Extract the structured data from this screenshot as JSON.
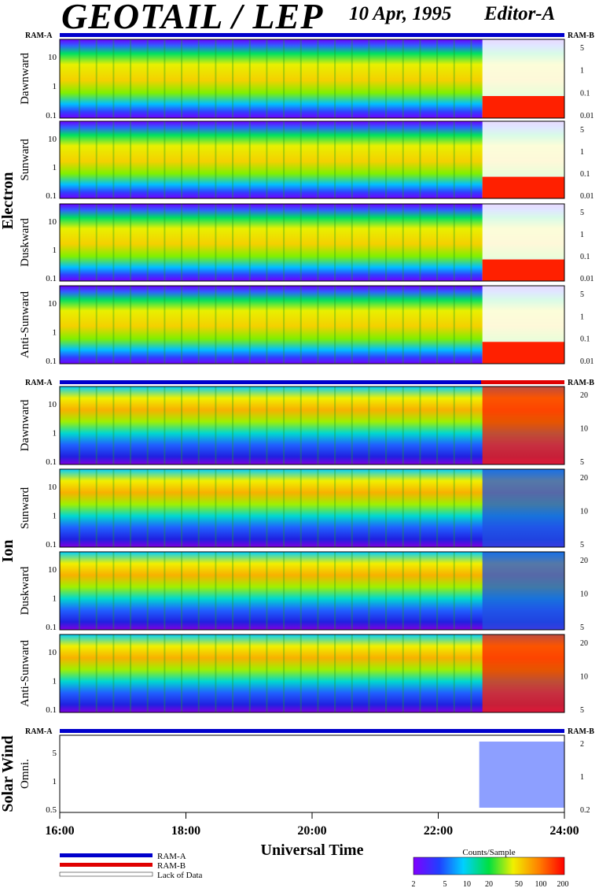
{
  "header": {
    "title": "GEOTAIL / LEP",
    "date": "10 Apr, 1995",
    "editor": "Editor-A"
  },
  "ram": {
    "a": "RAM-A",
    "b": "RAM-B"
  },
  "groups": {
    "electron": "Electron",
    "ion": "Ion",
    "solar_wind": "Solar Wind"
  },
  "colors": {
    "ram_a": "#0000cc",
    "ram_b": "#e00000",
    "no_data": "#ffffff"
  },
  "legend": {
    "ram_a": "RAM-A",
    "ram_b": "RAM-B",
    "lack": "Lack of Data"
  },
  "colorbar": {
    "title": "Counts/Sample",
    "ticks": [
      "2",
      "5",
      "10",
      "20",
      "50",
      "100",
      "200"
    ]
  },
  "chart_data": {
    "type": "heatmap",
    "xlabel": "Universal Time",
    "x_ticks": [
      "16:00",
      "18:00",
      "20:00",
      "22:00",
      "24:00"
    ],
    "xlim": [
      "16:00",
      "24:00"
    ],
    "panels": [
      {
        "label": "Dawnward",
        "group": "Electron",
        "y_left": [
          "10",
          "1",
          "0.1"
        ],
        "y_right": [
          "5",
          "1",
          "0.1",
          "0.01"
        ]
      },
      {
        "label": "Sunward",
        "group": "Electron",
        "y_left": [
          "10",
          "1",
          "0.1"
        ],
        "y_right": [
          "5",
          "1",
          "0.1",
          "0.01"
        ]
      },
      {
        "label": "Duskward",
        "group": "Electron",
        "y_left": [
          "10",
          "1",
          "0.1"
        ],
        "y_right": [
          "5",
          "1",
          "0.1",
          "0.01"
        ]
      },
      {
        "label": "Anti-Sunward",
        "group": "Electron",
        "y_left": [
          "10",
          "1",
          "0.1"
        ],
        "y_right": [
          "5",
          "1",
          "0.1",
          "0.01"
        ]
      },
      {
        "label": "Dawnward",
        "group": "Ion",
        "y_left": [
          "10",
          "1",
          "0.1"
        ],
        "y_right": [
          "20",
          "10",
          "5"
        ]
      },
      {
        "label": "Sunward",
        "group": "Ion",
        "y_left": [
          "10",
          "1",
          "0.1"
        ],
        "y_right": [
          "20",
          "10",
          "5"
        ]
      },
      {
        "label": "Duskward",
        "group": "Ion",
        "y_left": [
          "10",
          "1",
          "0.1"
        ],
        "y_right": [
          "20",
          "10",
          "5"
        ]
      },
      {
        "label": "Anti-Sunward",
        "group": "Ion",
        "y_left": [
          "10",
          "1",
          "0.1"
        ],
        "y_right": [
          "20",
          "10",
          "5"
        ]
      },
      {
        "label": "Omni.",
        "group": "Solar Wind",
        "y_left": [
          "5",
          "1",
          "0.5"
        ],
        "y_right": [
          "2",
          "1",
          "0.2"
        ]
      }
    ]
  }
}
